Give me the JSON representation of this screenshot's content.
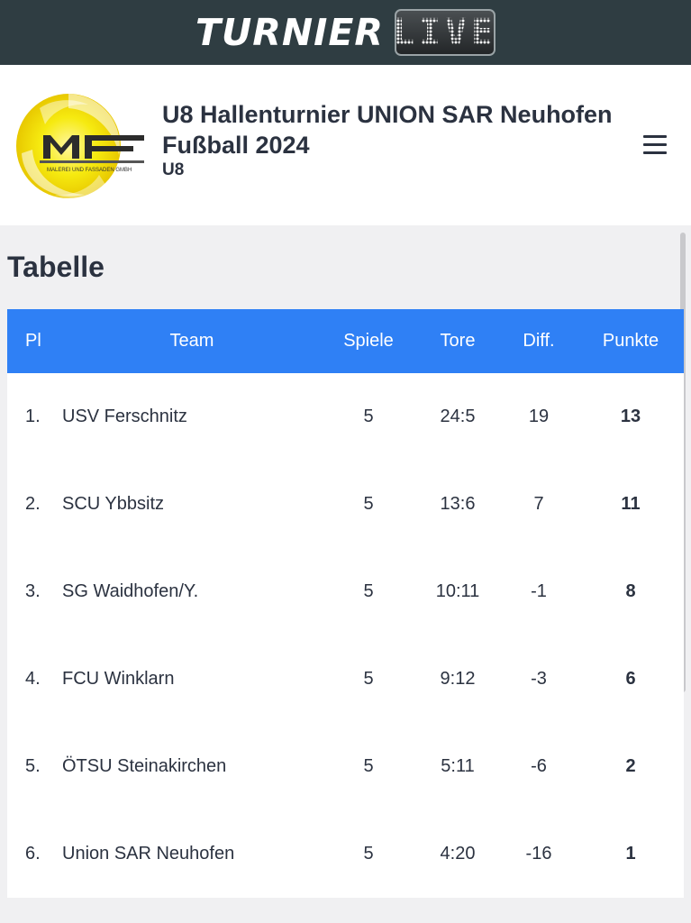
{
  "brand": {
    "word": "TURNIER",
    "live": "LIVE"
  },
  "tournament": {
    "title": "U8 Hallenturnier UNION SAR Neuhofen Fußball 2024",
    "subtitle": "U8",
    "logo_text": "MALEREI UND FASSADEN GMBH",
    "logo_icon": "sponsor-logo-icon",
    "menu_icon": "hamburger-menu-icon"
  },
  "standings": {
    "title": "Tabelle",
    "columns": {
      "pl": "Pl",
      "team": "Team",
      "spiele": "Spiele",
      "tore": "Tore",
      "diff": "Diff.",
      "punkte": "Punkte"
    },
    "rows": [
      {
        "pl": "1.",
        "team": "USV Ferschnitz",
        "spiele": "5",
        "tore": "24:5",
        "diff": "19",
        "punkte": "13"
      },
      {
        "pl": "2.",
        "team": "SCU Ybbsitz",
        "spiele": "5",
        "tore": "13:6",
        "diff": "7",
        "punkte": "11"
      },
      {
        "pl": "3.",
        "team": "SG Waidhofen/Y.",
        "spiele": "5",
        "tore": "10:11",
        "diff": "-1",
        "punkte": "8"
      },
      {
        "pl": "4.",
        "team": "FCU Winklarn",
        "spiele": "5",
        "tore": "9:12",
        "diff": "-3",
        "punkte": "6"
      },
      {
        "pl": "5.",
        "team": "ÖTSU Steinakirchen",
        "spiele": "5",
        "tore": "5:11",
        "diff": "-6",
        "punkte": "2"
      },
      {
        "pl": "6.",
        "team": "Union SAR Neuhofen",
        "spiele": "5",
        "tore": "4:20",
        "diff": "-16",
        "punkte": "1"
      }
    ]
  },
  "colors": {
    "header_bar": "#2f3d42",
    "table_header": "#2f80f5",
    "logo_yellow": "#f2e600"
  }
}
